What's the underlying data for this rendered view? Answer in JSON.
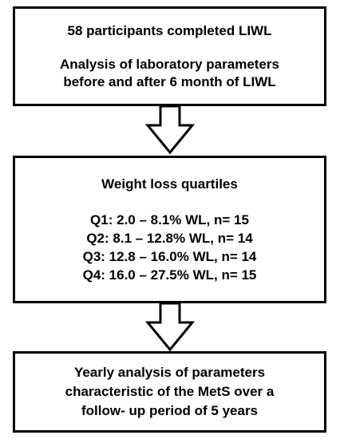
{
  "box1": {
    "line1": "58 participants completed LIWL",
    "line2": "Analysis of laboratory parameters",
    "line3": "before and after 6 month of LIWL"
  },
  "box2": {
    "title": "Weight loss quartiles",
    "quartiles": [
      "Q1: 2.0 – 8.1% WL, n= 15",
      "Q2: 8.1 – 12.8% WL, n= 14",
      "Q3: 12.8 – 16.0% WL, n= 14",
      "Q4: 16.0 – 27.5% WL, n= 15"
    ]
  },
  "box3": {
    "line1": "Yearly analysis of parameters",
    "line2": "characteristic of the MetS over a",
    "line3": "follow- up period of 5 years"
  },
  "colors": {
    "stroke": "#000000",
    "fill": "#ffffff"
  },
  "icons": [
    "down-arrow-icon",
    "down-arrow-icon"
  ]
}
